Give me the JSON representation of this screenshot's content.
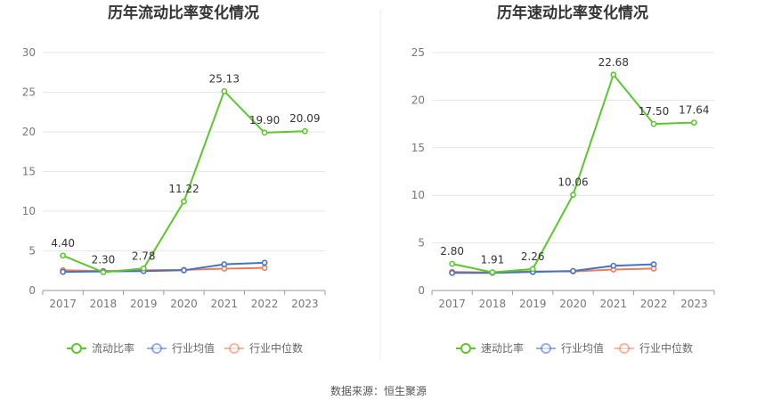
{
  "colors": {
    "primary": "#5cc72c",
    "industry_avg": "#4472c4",
    "industry_median": "#ed7d57",
    "grid": "#e6e6e6",
    "axis": "#999999",
    "divider": "#eeeeee"
  },
  "chart_data": [
    {
      "type": "line",
      "title": "历年流动比率变化情况",
      "categories": [
        "2017",
        "2018",
        "2019",
        "2020",
        "2021",
        "2022",
        "2023"
      ],
      "ylim": [
        0,
        30
      ],
      "yticks": [
        0,
        5,
        10,
        15,
        20,
        25,
        30
      ],
      "grid": true,
      "legend_position": "bottom",
      "series": [
        {
          "name": "流动比率",
          "values": [
            4.4,
            2.3,
            2.78,
            11.22,
            25.13,
            19.9,
            20.09
          ],
          "labels": [
            "4.40",
            "2.30",
            "2.78",
            "11.22",
            "25.13",
            "19.90",
            "20.09"
          ]
        },
        {
          "name": "行业均值",
          "values": [
            2.35,
            2.4,
            2.45,
            2.55,
            3.3,
            3.5,
            null
          ]
        },
        {
          "name": "行业中位数",
          "values": [
            2.55,
            2.45,
            2.55,
            2.6,
            2.75,
            2.85,
            null
          ]
        }
      ]
    },
    {
      "type": "line",
      "title": "历年速动比率变化情况",
      "categories": [
        "2017",
        "2018",
        "2019",
        "2020",
        "2021",
        "2022",
        "2023"
      ],
      "ylim": [
        0,
        25
      ],
      "yticks": [
        0,
        5,
        10,
        15,
        20,
        25
      ],
      "grid": true,
      "legend_position": "bottom",
      "series": [
        {
          "name": "速动比率",
          "values": [
            2.8,
            1.91,
            2.26,
            10.06,
            22.68,
            17.5,
            17.64
          ],
          "labels": [
            "2.80",
            "1.91",
            "2.26",
            "10.06",
            "22.68",
            "17.50",
            "17.64"
          ]
        },
        {
          "name": "行业均值",
          "values": [
            1.85,
            1.85,
            1.95,
            2.05,
            2.6,
            2.75,
            null
          ]
        },
        {
          "name": "行业中位数",
          "values": [
            1.95,
            1.9,
            2.0,
            2.0,
            2.2,
            2.3,
            null
          ]
        }
      ]
    }
  ],
  "footer": {
    "source": "数据来源：恒生聚源"
  }
}
